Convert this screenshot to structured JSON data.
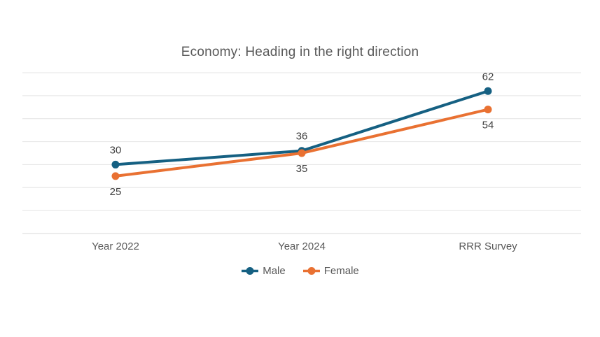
{
  "chart_data": {
    "type": "line",
    "title": "Economy: Heading in the right direction",
    "categories": [
      "Year 2022",
      "Year 2024",
      "RRR Survey"
    ],
    "series": [
      {
        "name": "Male",
        "values": [
          30,
          36,
          62
        ],
        "color": "#156082",
        "label_position": "above"
      },
      {
        "name": "Female",
        "values": [
          25,
          35,
          54
        ],
        "color": "#E97132",
        "label_position": "below"
      }
    ],
    "ylim": [
      0,
      70
    ],
    "y_gridline_step": 10,
    "y_axis_tick_labels": "hidden",
    "grid": true,
    "data_labels": true,
    "marker": "circle",
    "legend_position": "bottom"
  },
  "style": {
    "title_color": "#595959",
    "axis_label_color": "#595959",
    "data_label_color": "#404040",
    "gridline_color": "#E4E4E4",
    "axis_line_color": "#DADADA",
    "legend_text_color": "#595959",
    "background": "#FFFFFF"
  }
}
